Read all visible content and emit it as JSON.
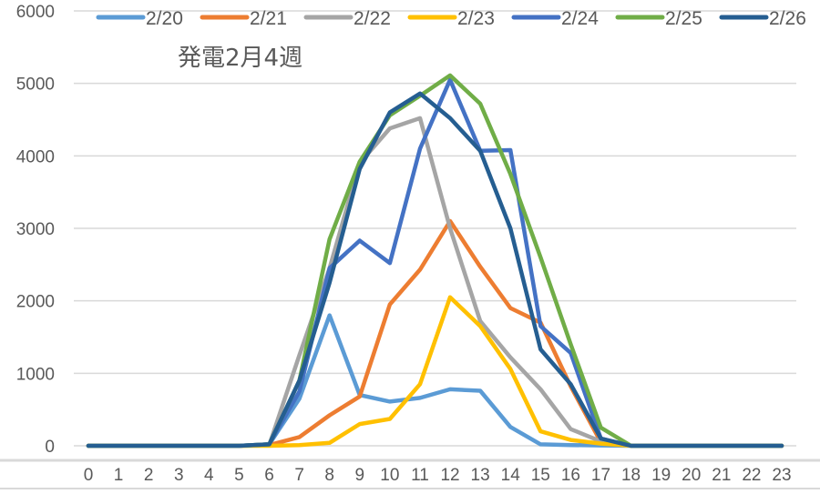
{
  "chart_data": {
    "type": "line",
    "title": "発電2月4週",
    "xlabel": "",
    "ylabel": "",
    "x": [
      0,
      1,
      2,
      3,
      4,
      5,
      6,
      7,
      8,
      9,
      10,
      11,
      12,
      13,
      14,
      15,
      16,
      17,
      18,
      19,
      20,
      21,
      22,
      23
    ],
    "categories": [
      "0",
      "1",
      "2",
      "3",
      "4",
      "5",
      "6",
      "7",
      "8",
      "9",
      "10",
      "11",
      "12",
      "13",
      "14",
      "15",
      "16",
      "17",
      "18",
      "19",
      "20",
      "21",
      "22",
      "23"
    ],
    "ylim": [
      0,
      6000
    ],
    "yticks": [
      0,
      1000,
      2000,
      3000,
      4000,
      5000,
      6000
    ],
    "grid": true,
    "legend_position": "top",
    "series": [
      {
        "name": "2/20",
        "color": "#5B9BD5",
        "values": [
          0,
          0,
          0,
          0,
          0,
          0,
          20,
          650,
          1800,
          700,
          610,
          660,
          780,
          760,
          260,
          20,
          10,
          5,
          0,
          0,
          0,
          0,
          0,
          0
        ]
      },
      {
        "name": "2/21",
        "color": "#ED7D31",
        "values": [
          0,
          0,
          0,
          0,
          0,
          0,
          10,
          120,
          420,
          680,
          1950,
          2430,
          3100,
          2470,
          1900,
          1700,
          820,
          50,
          0,
          0,
          0,
          0,
          0,
          0
        ]
      },
      {
        "name": "2/22",
        "color": "#A5A5A5",
        "values": [
          0,
          0,
          0,
          0,
          0,
          0,
          10,
          1250,
          2450,
          3900,
          4380,
          4520,
          3000,
          1720,
          1220,
          780,
          230,
          60,
          0,
          0,
          0,
          0,
          0,
          0
        ]
      },
      {
        "name": "2/23",
        "color": "#FFC000",
        "values": [
          0,
          0,
          0,
          0,
          0,
          0,
          0,
          10,
          40,
          300,
          370,
          850,
          2050,
          1650,
          1060,
          200,
          80,
          30,
          0,
          0,
          0,
          0,
          0,
          0
        ]
      },
      {
        "name": "2/24",
        "color": "#4472C4",
        "values": [
          0,
          0,
          0,
          0,
          0,
          0,
          20,
          750,
          2450,
          2830,
          2520,
          4100,
          5050,
          4070,
          4080,
          1650,
          1280,
          100,
          0,
          0,
          0,
          0,
          0,
          0
        ]
      },
      {
        "name": "2/25",
        "color": "#70AD47",
        "values": [
          0,
          0,
          0,
          0,
          0,
          0,
          20,
          900,
          2850,
          3920,
          4560,
          4830,
          5110,
          4720,
          3750,
          2600,
          1400,
          250,
          0,
          0,
          0,
          0,
          0,
          0
        ]
      },
      {
        "name": "2/26",
        "color": "#255E91",
        "values": [
          0,
          0,
          0,
          0,
          0,
          0,
          20,
          900,
          2250,
          3820,
          4600,
          4860,
          4520,
          4070,
          3000,
          1330,
          850,
          100,
          0,
          0,
          0,
          0,
          0,
          0
        ]
      }
    ]
  },
  "title": "発電2月4週",
  "legend": [
    "2/20",
    "2/21",
    "2/22",
    "2/23",
    "2/24",
    "2/25",
    "2/26"
  ]
}
